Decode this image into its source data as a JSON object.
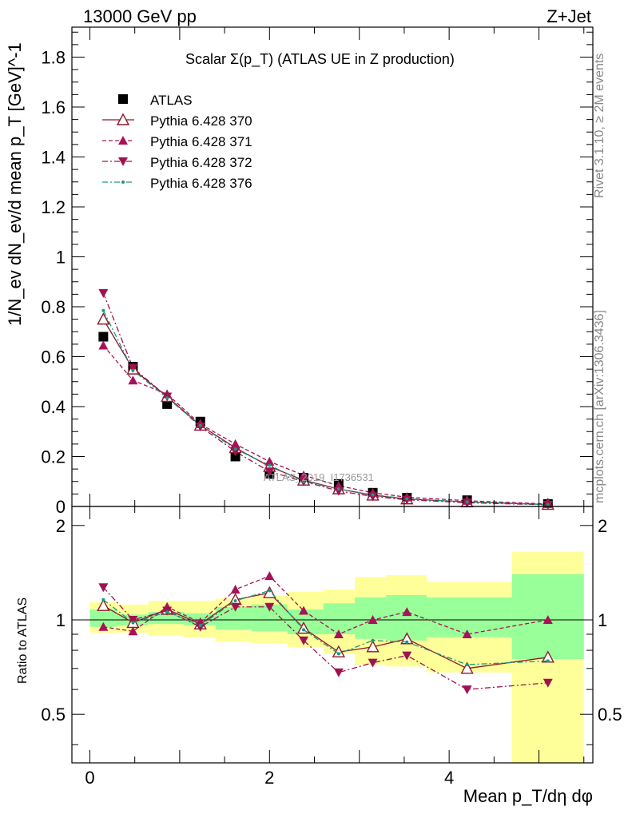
{
  "header": {
    "energy": "13000 GeV pp",
    "process": "Z+Jet"
  },
  "side_text": {
    "rivet": "Rivet 3.1.10, ≥ 2M events",
    "source": "mcplots.cern.ch [arXiv:1306.3436]"
  },
  "chart_data": [
    {
      "type": "scatter",
      "panel": "main",
      "title": "Scalar Σ(p_T) (ATLAS UE in Z production)",
      "ylabel": "1/N_ev dN_ev/d mean p_T [GeV]^-1",
      "xlabel": "",
      "watermark": "ATLAS_2019_I1736531",
      "xlim": [
        -0.2,
        5.6
      ],
      "ylim": [
        0,
        1.92
      ],
      "yticks": [
        0,
        0.2,
        0.4,
        0.6,
        0.8,
        1,
        1.2,
        1.4,
        1.6,
        1.8
      ],
      "ytick_labels": [
        "0",
        "0.2",
        "0.4",
        "0.6",
        "0.8",
        "1",
        "1.2",
        "1.4",
        "1.6",
        "1.8"
      ],
      "bin_edges": [
        0,
        0.3,
        0.65,
        1.05,
        1.4,
        1.8,
        2.2,
        2.6,
        2.95,
        3.3,
        3.75,
        4.7,
        5.5
      ],
      "x": [
        0.15,
        0.48,
        0.86,
        1.23,
        1.62,
        2.0,
        2.38,
        2.77,
        3.15,
        3.53,
        4.2,
        5.1
      ],
      "legend_position": "upper-left",
      "series": [
        {
          "name": "ATLAS",
          "marker": "square",
          "color": "#000000",
          "values": [
            0.68,
            0.56,
            0.41,
            0.34,
            0.2,
            0.13,
            0.115,
            0.09,
            0.055,
            0.035,
            0.025,
            0.01
          ]
        },
        {
          "name": "Pythia 6.428 370",
          "marker": "triangle-up-open",
          "line": "solid",
          "color": "#8b1a2b",
          "values": [
            0.75,
            0.55,
            0.44,
            0.325,
            0.235,
            0.16,
            0.105,
            0.07,
            0.045,
            0.03,
            0.018,
            0.008
          ]
        },
        {
          "name": "Pythia 6.428 371",
          "marker": "triangle-up",
          "line": "dashed",
          "color": "#a8125a",
          "values": [
            0.645,
            0.505,
            0.45,
            0.33,
            0.25,
            0.18,
            0.125,
            0.083,
            0.055,
            0.037,
            0.023,
            0.01
          ]
        },
        {
          "name": "Pythia 6.428 372",
          "marker": "triangle-down",
          "line": "dashdot",
          "color": "#a0124f",
          "values": [
            0.855,
            0.555,
            0.44,
            0.32,
            0.22,
            0.14,
            0.1,
            0.062,
            0.04,
            0.027,
            0.015,
            0.0065
          ]
        },
        {
          "name": "Pythia 6.428 376",
          "marker": "dot",
          "line": "dashdot",
          "color": "#1a9a7a",
          "values": [
            0.785,
            0.545,
            0.435,
            0.325,
            0.23,
            0.165,
            0.1,
            0.07,
            0.047,
            0.031,
            0.018,
            0.0075
          ]
        }
      ]
    },
    {
      "type": "scatter",
      "panel": "ratio",
      "ylabel": "Ratio to ATLAS",
      "xlabel": "Mean p_T/dη dφ",
      "xlim": [
        -0.2,
        5.6
      ],
      "ylim": [
        0.35,
        2.3
      ],
      "yticks": [
        0.5,
        1,
        2
      ],
      "ytick_labels": [
        "0.5",
        "1",
        "2"
      ],
      "xticks": [
        0,
        2,
        4
      ],
      "xtick_labels": [
        "0",
        "2",
        "4"
      ],
      "reference_line": 1,
      "band_stat": [
        [
          0.95,
          1.08
        ],
        [
          0.96,
          1.04
        ],
        [
          0.97,
          1.06
        ],
        [
          0.96,
          1.05
        ],
        [
          0.93,
          1.1
        ],
        [
          0.92,
          1.12
        ],
        [
          0.9,
          1.08
        ],
        [
          0.9,
          1.13
        ],
        [
          0.87,
          1.18
        ],
        [
          0.86,
          1.2
        ],
        [
          0.88,
          1.18
        ],
        [
          0.75,
          1.4
        ]
      ],
      "band_syst": [
        [
          0.91,
          1.14
        ],
        [
          0.91,
          1.12
        ],
        [
          0.89,
          1.15
        ],
        [
          0.88,
          1.15
        ],
        [
          0.85,
          1.17
        ],
        [
          0.84,
          1.2
        ],
        [
          0.82,
          1.23
        ],
        [
          0.78,
          1.25
        ],
        [
          0.72,
          1.37
        ],
        [
          0.71,
          1.39
        ],
        [
          0.68,
          1.32
        ],
        [
          0.35,
          1.65
        ]
      ],
      "series": [
        {
          "name": "Pythia 6.428 370",
          "values": [
            1.11,
            0.98,
            1.08,
            0.97,
            1.16,
            1.22,
            0.94,
            0.79,
            0.82,
            0.87,
            0.7,
            0.76
          ]
        },
        {
          "name": "Pythia 6.428 371",
          "values": [
            0.95,
            0.92,
            1.1,
            0.98,
            1.25,
            1.38,
            1.07,
            0.9,
            1.0,
            1.06,
            0.9,
            1.0
          ]
        },
        {
          "name": "Pythia 6.428 372",
          "values": [
            1.27,
            1.0,
            1.07,
            0.95,
            1.1,
            1.1,
            0.86,
            0.68,
            0.73,
            0.77,
            0.6,
            0.63
          ]
        },
        {
          "name": "Pythia 6.428 376",
          "values": [
            1.16,
            0.98,
            1.06,
            0.96,
            1.15,
            1.24,
            0.93,
            0.78,
            0.86,
            0.85,
            0.72,
            0.74
          ]
        }
      ]
    }
  ]
}
